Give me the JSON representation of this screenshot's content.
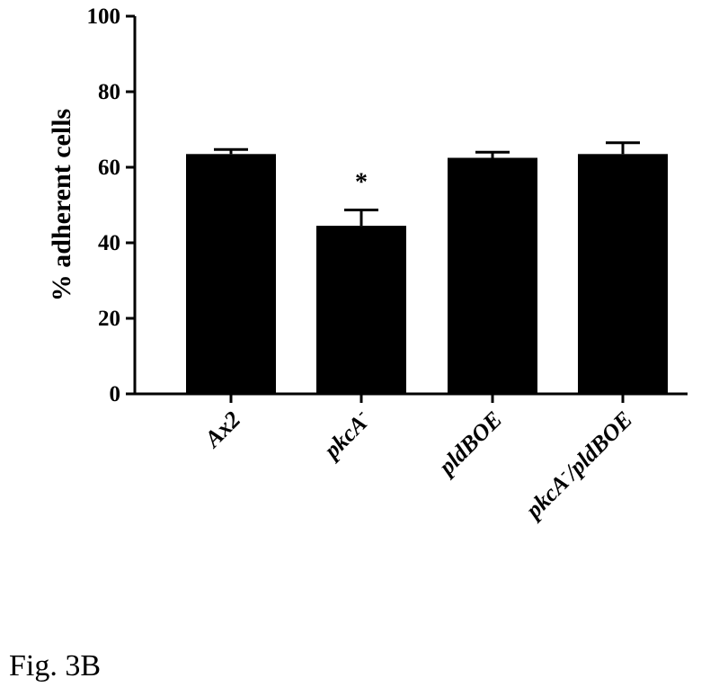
{
  "chart_data": {
    "type": "bar",
    "categories": [
      "Ax2",
      "pkcA-",
      "pldBOE",
      "pkcA-/pldBOE"
    ],
    "category_labels": [
      {
        "text": "Ax2",
        "sup": ""
      },
      {
        "text": "pkcA",
        "sup": "-"
      },
      {
        "text": "pldBOE",
        "sup": ""
      },
      {
        "text": "pkcA",
        "sup": "-",
        "suffix": "/pldBOE"
      }
    ],
    "values": [
      63.5,
      44.5,
      62.5,
      63.5
    ],
    "errors": [
      1.2,
      4.2,
      1.5,
      3.0
    ],
    "annotations": [
      "",
      "*",
      "",
      ""
    ],
    "ylabel": "% adherent cells",
    "xlabel": "",
    "ylim": [
      0,
      100
    ],
    "yticks": [
      0,
      20,
      40,
      60,
      80,
      100
    ],
    "grid": false,
    "bar_color": "#000000"
  },
  "caption": "Fig. 3B"
}
